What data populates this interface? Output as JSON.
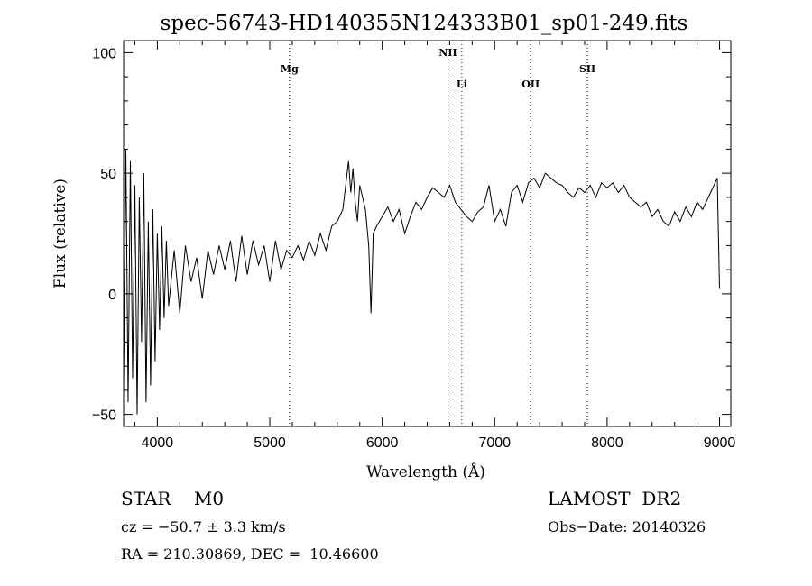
{
  "chart_data": {
    "type": "line",
    "title": "spec-56743-HD140355N124333B01_sp01-249.fits",
    "xlabel": "Wavelength (Å)",
    "ylabel": "Flux (relative)",
    "xlim": [
      3700,
      9100
    ],
    "ylim": [
      -55,
      105
    ],
    "xticks": [
      4000,
      5000,
      6000,
      7000,
      8000,
      9000
    ],
    "yticks": [
      -50,
      0,
      50,
      100
    ],
    "grid": false,
    "line_color": "#000000",
    "lines": [
      {
        "label": "Mg",
        "x": 5175
      },
      {
        "label": "NII",
        "x": 6584
      },
      {
        "label": "Li",
        "x": 6708
      },
      {
        "label": "OII",
        "x": 7320
      },
      {
        "label": "SII",
        "x": 7825
      }
    ],
    "series": [
      {
        "x": [
          3700,
          3720,
          3740,
          3760,
          3780,
          3800,
          3820,
          3840,
          3860,
          3880,
          3900,
          3920,
          3940,
          3960,
          3980,
          4000,
          4020,
          4040,
          4060,
          4080,
          4100,
          4150,
          4200,
          4250,
          4300,
          4350,
          4400,
          4450,
          4500,
          4550,
          4600,
          4650,
          4700,
          4750,
          4800,
          4850,
          4900,
          4950,
          5000,
          5050,
          5100,
          5150,
          5200,
          5250,
          5300,
          5350,
          5400,
          5450,
          5500,
          5550,
          5600,
          5650,
          5700,
          5720,
          5740,
          5760,
          5780,
          5800,
          5850,
          5880,
          5900,
          5920,
          5950,
          6000,
          6050,
          6100,
          6150,
          6200,
          6250,
          6300,
          6350,
          6400,
          6450,
          6500,
          6550,
          6600,
          6650,
          6700,
          6750,
          6800,
          6850,
          6900,
          6950,
          7000,
          7050,
          7100,
          7150,
          7200,
          7250,
          7300,
          7350,
          7400,
          7450,
          7500,
          7550,
          7600,
          7650,
          7700,
          7750,
          7800,
          7850,
          7900,
          7950,
          8000,
          8050,
          8100,
          8150,
          8200,
          8250,
          8300,
          8350,
          8400,
          8450,
          8500,
          8550,
          8600,
          8650,
          8700,
          8750,
          8800,
          8850,
          8900,
          8950,
          8980,
          9000
        ],
        "y": [
          -40,
          60,
          -45,
          55,
          -35,
          45,
          -50,
          40,
          -20,
          50,
          -45,
          30,
          -38,
          35,
          -28,
          25,
          -15,
          28,
          -10,
          22,
          -5,
          18,
          -8,
          20,
          5,
          15,
          -2,
          18,
          8,
          20,
          10,
          22,
          5,
          24,
          8,
          22,
          12,
          20,
          5,
          22,
          10,
          18,
          15,
          20,
          14,
          22,
          16,
          25,
          18,
          28,
          30,
          35,
          55,
          42,
          52,
          38,
          30,
          45,
          35,
          20,
          -8,
          25,
          28,
          32,
          36,
          30,
          35,
          25,
          32,
          38,
          35,
          40,
          44,
          42,
          40,
          45,
          38,
          35,
          32,
          30,
          34,
          36,
          45,
          30,
          35,
          28,
          42,
          45,
          38,
          46,
          48,
          44,
          50,
          48,
          46,
          45,
          42,
          40,
          44,
          42,
          45,
          40,
          46,
          44,
          46,
          42,
          45,
          40,
          38,
          36,
          38,
          32,
          35,
          30,
          28,
          34,
          30,
          36,
          32,
          38,
          35,
          40,
          45,
          48,
          2
        ]
      }
    ]
  },
  "footer": {
    "object": "STAR    M0",
    "survey": "LAMOST  DR2",
    "cz": "cz = −50.7 ± 3.3 km/s",
    "obs_date": "Obs−Date: 20140326",
    "radec": "RA = 210.30869, DEC =  10.46600"
  }
}
